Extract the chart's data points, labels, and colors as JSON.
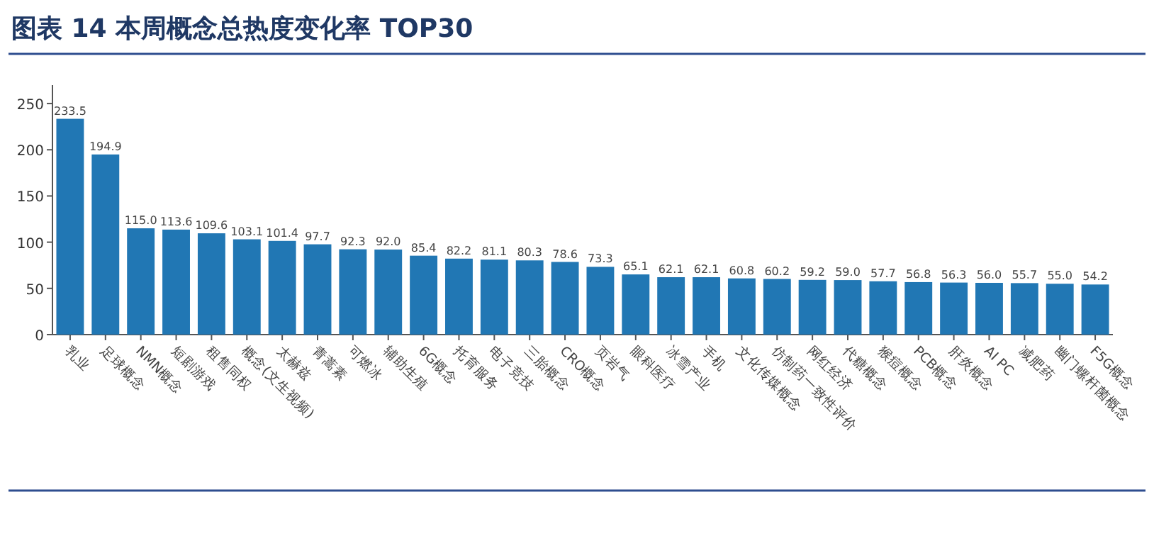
{
  "chart_data": {
    "type": "bar",
    "title": "图表 14   本周概念总热度变化率 TOP30",
    "categories": [
      "乳业",
      "足球概念",
      "NMN概念",
      "短剧游戏",
      "租售同权",
      "概念(文生视频)",
      "太赫兹",
      "青蒿素",
      "可燃冰",
      "辅助生殖",
      "6G概念",
      "托育服务",
      "电子竞技",
      "三胎概念",
      "CRO概念",
      "页岩气",
      "眼科医疗",
      "冰雪产业",
      "手机",
      "文化传媒概念",
      "仿制药一致性评价",
      "网红经济",
      "代糖概念",
      "猴痘概念",
      "PCB概念",
      "肝炎概念",
      "AI PC",
      "减肥药",
      "幽门螺杆菌概念",
      "F5G概念"
    ],
    "values": [
      233.5,
      194.9,
      115.0,
      113.6,
      109.6,
      103.1,
      101.4,
      97.7,
      92.3,
      92.0,
      85.4,
      82.2,
      81.1,
      80.3,
      78.6,
      73.3,
      65.1,
      62.1,
      62.1,
      60.8,
      60.2,
      59.2,
      59.0,
      57.7,
      56.8,
      56.3,
      56.0,
      55.7,
      55.0,
      54.2
    ],
    "value_labels": [
      "233.5",
      "194.9",
      "115.0",
      "113.6",
      "109.6",
      "103.1",
      "101.4",
      "97.7",
      "92.3",
      "92.0",
      "85.4",
      "82.2",
      "81.1",
      "80.3",
      "78.6",
      "73.3",
      "65.1",
      "62.1",
      "62.1",
      "60.8",
      "60.2",
      "59.2",
      "59.0",
      "57.7",
      "56.8",
      "56.3",
      "56.0",
      "55.7",
      "55.0",
      "54.2"
    ],
    "color": "#2177b4",
    "ylim": [
      0,
      270
    ],
    "yticks": [
      0,
      50,
      100,
      150,
      200,
      250
    ]
  }
}
